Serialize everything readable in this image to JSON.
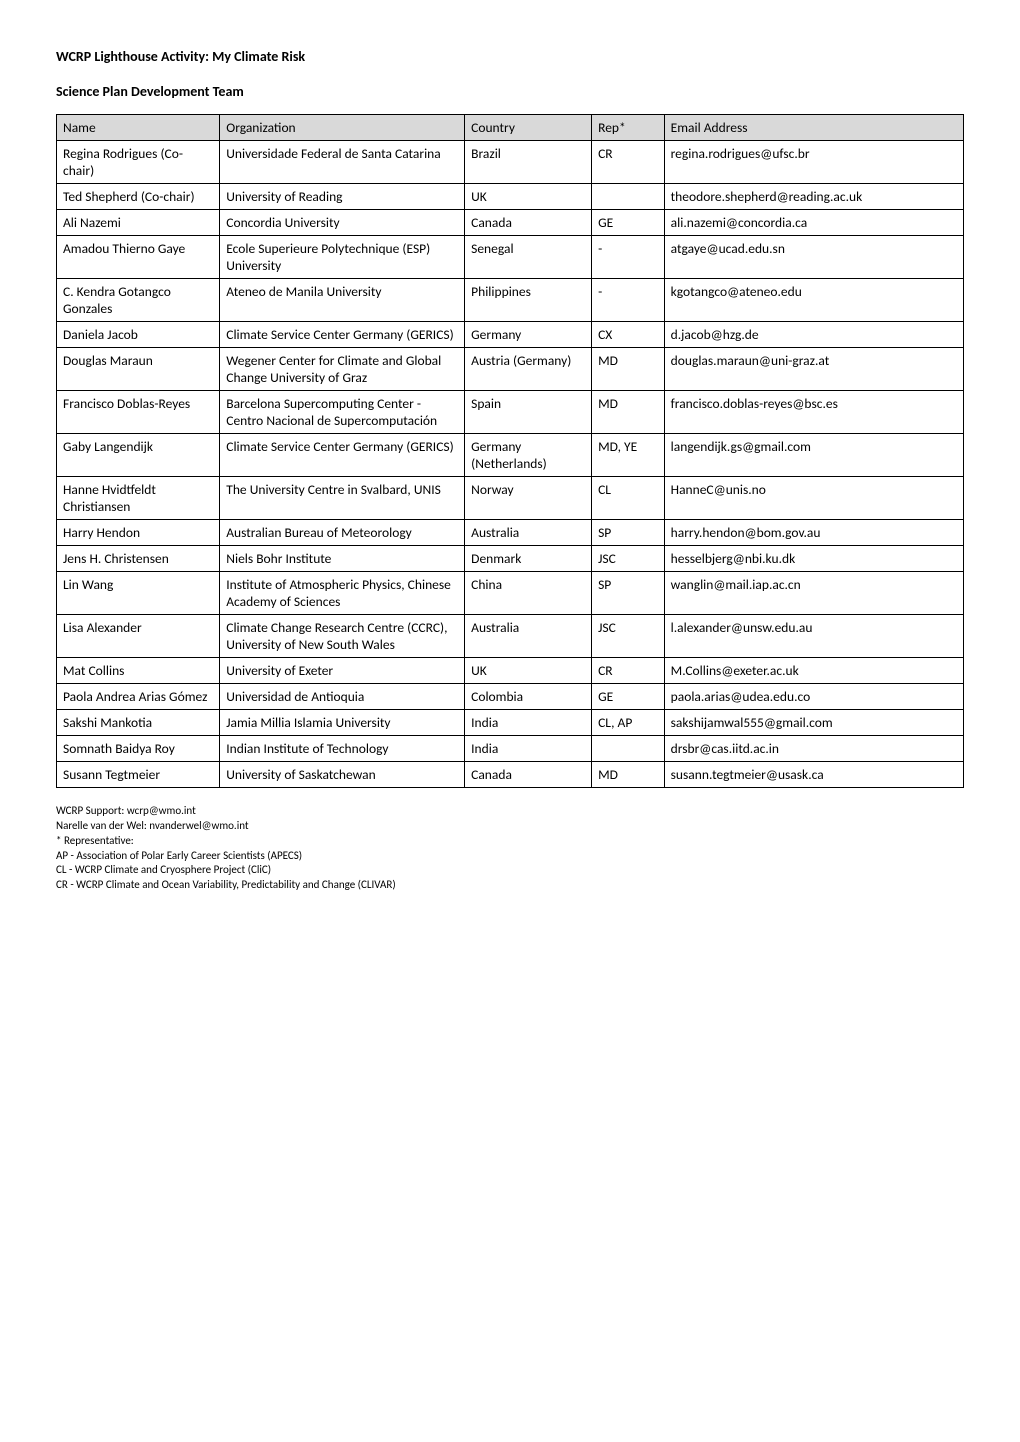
{
  "title": "WCRP Lighthouse Activity: My Climate Risk",
  "section_heading": "Science Plan Development Team",
  "table": {
    "columns": [
      "Name",
      "Organization",
      "Country",
      "Rep*",
      "Email Address"
    ],
    "header_bg": "#d9d9d9",
    "rows": [
      [
        "Regina Rodrigues (Co-chair)",
        "Universidade Federal de Santa Catarina",
        "Brazil",
        "CR",
        "regina.rodrigues@ufsc.br"
      ],
      [
        "Ted Shepherd (Co-chair)",
        "University of Reading",
        "UK",
        "",
        "theodore.shepherd@reading.ac.uk"
      ],
      [
        "Ali Nazemi",
        "Concordia University",
        "Canada",
        "GE",
        "ali.nazemi@concordia.ca"
      ],
      [
        "Amadou Thierno Gaye",
        "Ecole Superieure Polytechnique (ESP) University",
        "Senegal",
        "-",
        "atgaye@ucad.edu.sn"
      ],
      [
        "C. Kendra Gotangco Gonzales",
        "Ateneo de Manila University",
        "Philippines",
        "-",
        "kgotangco@ateneo.edu"
      ],
      [
        "Daniela Jacob",
        "Climate Service Center Germany (GERICS)",
        "Germany",
        "CX",
        "d.jacob@hzg.de"
      ],
      [
        "Douglas Maraun",
        "Wegener Center for Climate and Global Change University of Graz",
        "Austria (Germany)",
        "MD",
        "douglas.maraun@uni-graz.at"
      ],
      [
        "Francisco Doblas-Reyes",
        "Barcelona Supercomputing Center - Centro Nacional de Supercomputación",
        "Spain",
        "MD",
        "francisco.doblas-reyes@bsc.es"
      ],
      [
        "Gaby Langendijk",
        "Climate Service Center Germany (GERICS)",
        "Germany (Netherlands)",
        "MD, YE",
        "langendijk.gs@gmail.com"
      ],
      [
        "Hanne Hvidtfeldt Christiansen",
        "The University Centre in Svalbard, UNIS",
        "Norway",
        "CL",
        "HanneC@unis.no"
      ],
      [
        "Harry Hendon",
        "Australian Bureau of Meteorology",
        "Australia",
        "SP",
        "harry.hendon@bom.gov.au"
      ],
      [
        "Jens H. Christensen",
        "Niels Bohr Institute",
        "Denmark",
        "JSC",
        "hesselbjerg@nbi.ku.dk"
      ],
      [
        "Lin Wang",
        "Institute of Atmospheric Physics, Chinese Academy of Sciences",
        "China",
        "SP",
        "wanglin@mail.iap.ac.cn"
      ],
      [
        "Lisa Alexander",
        "Climate Change Research Centre (CCRC), University of New South Wales",
        "Australia",
        "JSC",
        "l.alexander@unsw.edu.au"
      ],
      [
        "Mat Collins",
        "University of Exeter",
        "UK",
        "CR",
        "M.Collins@exeter.ac.uk"
      ],
      [
        "Paola Andrea Arias Gómez",
        "Universidad de Antioquia",
        "Colombia",
        "GE",
        "paola.arias@udea.edu.co"
      ],
      [
        "Sakshi Mankotia",
        "Jamia Millia Islamia University",
        "India",
        "CL, AP",
        "sakshijamwal555@gmail.com"
      ],
      [
        "Somnath Baidya Roy",
        "Indian Institute of Technology",
        "India",
        "",
        "drsbr@cas.iitd.ac.in"
      ],
      [
        "Susann Tegtmeier",
        "University of Saskatchewan",
        "Canada",
        "MD",
        "susann.tegtmeier@usask.ca"
      ]
    ]
  },
  "footnotes": [
    "WCRP Support: wcrp@wmo.int",
    "Narelle van der Wel: nvanderwel@wmo.int",
    "* Representative:",
    "AP -   Association of Polar Early Career Scientists (APECS)",
    "CL -   WCRP Climate and Cryosphere Project (CliC)",
    "CR -   WCRP Climate and Ocean Variability, Predictability and Change (CLIVAR)"
  ]
}
